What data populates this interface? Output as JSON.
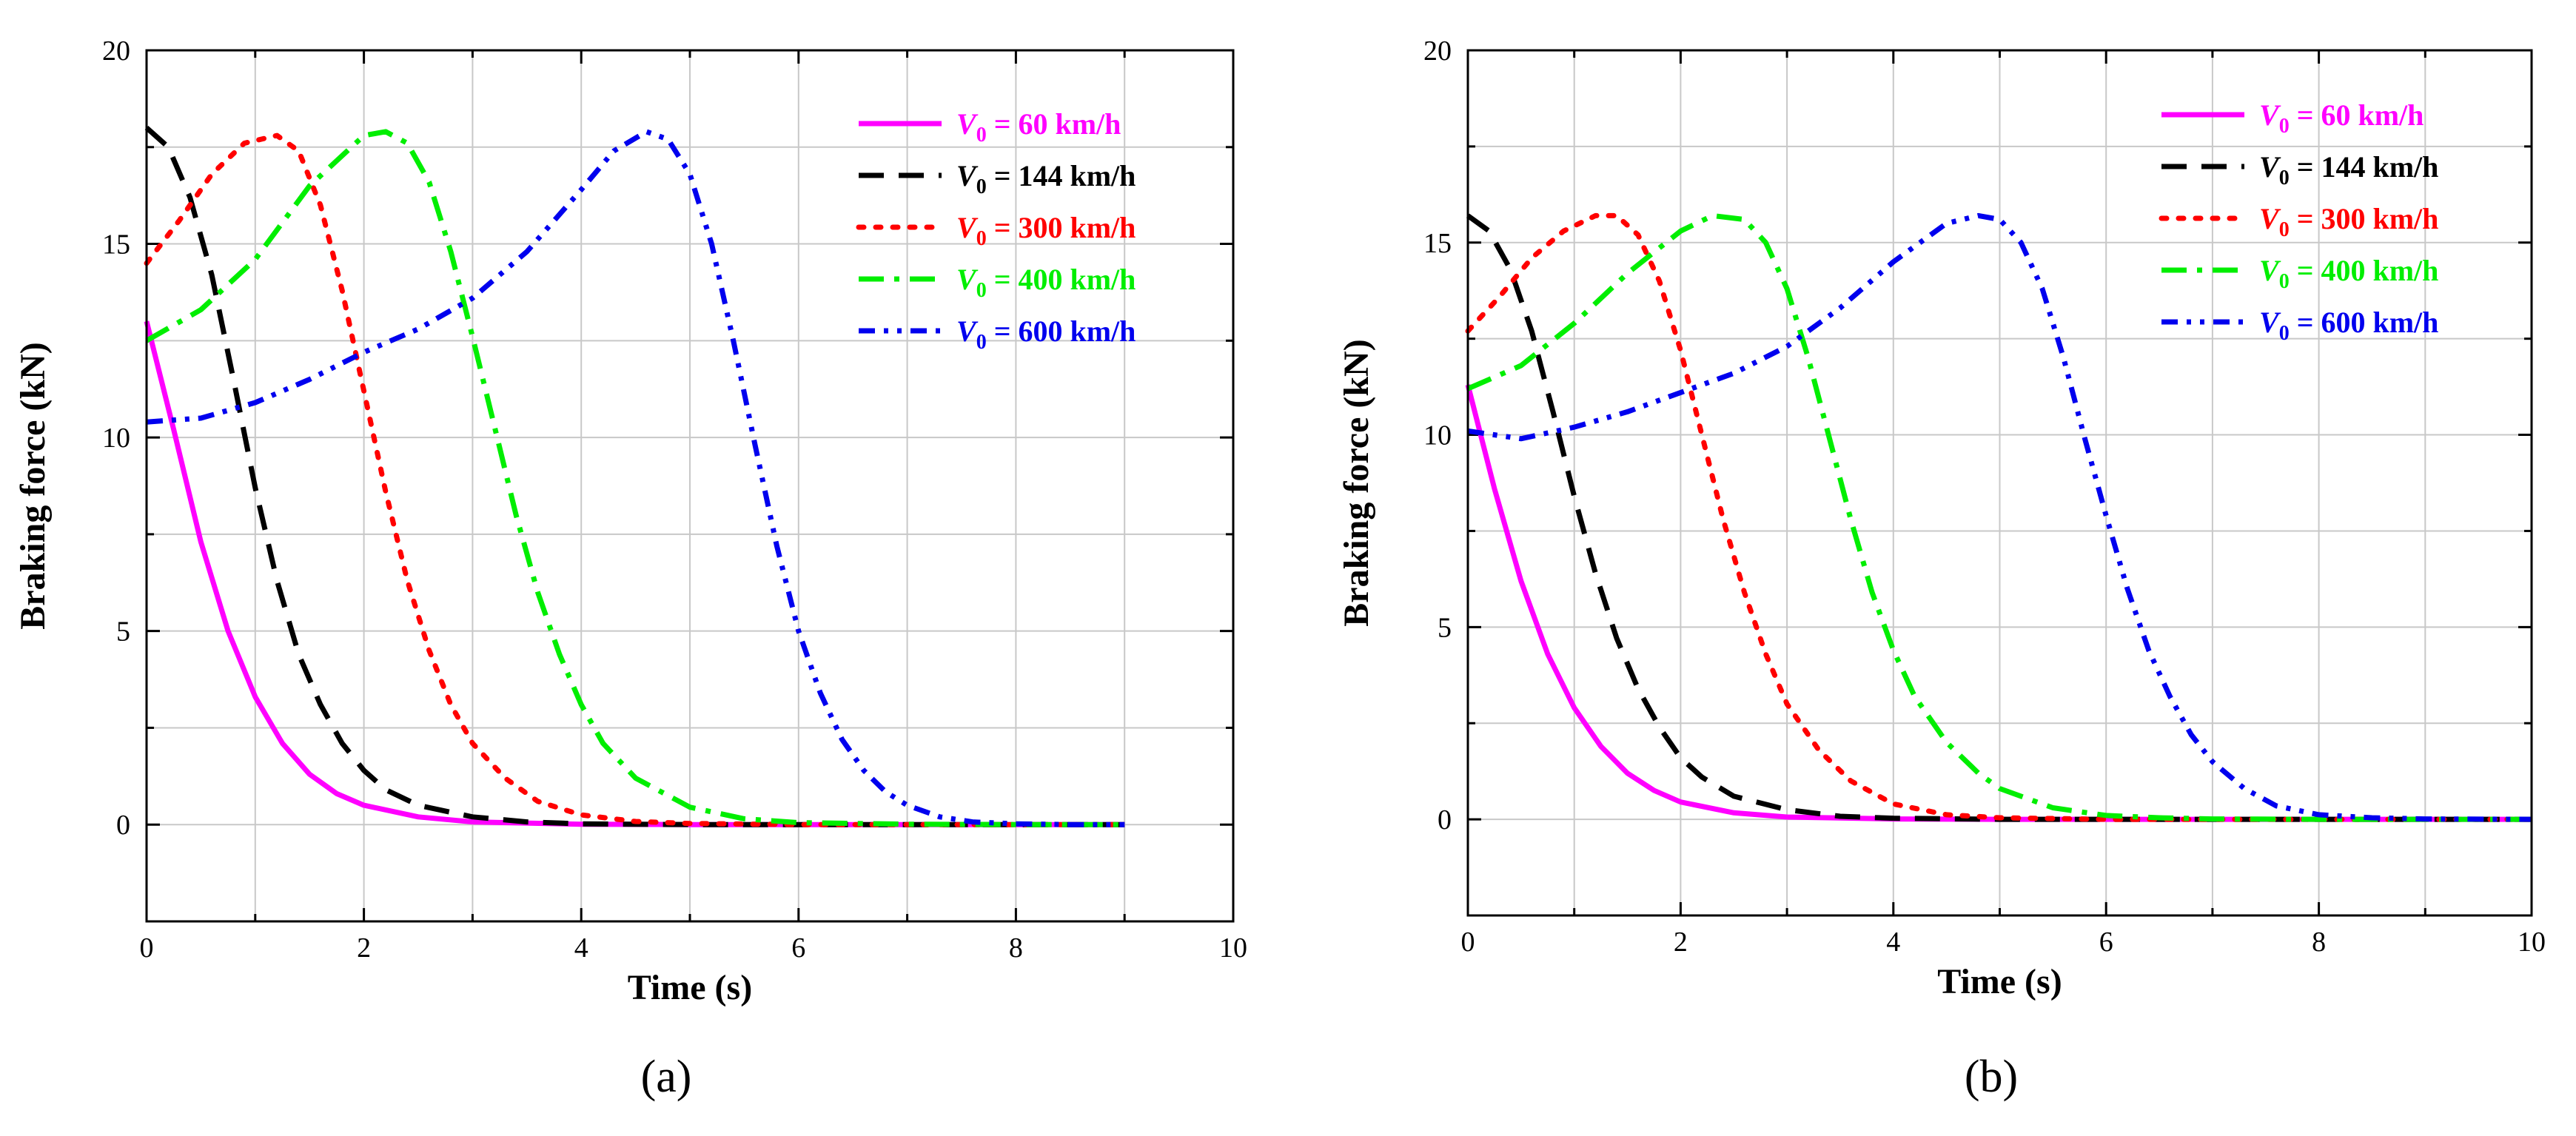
{
  "panels": [
    {
      "panel_label": "(a)",
      "chart_data": {
        "type": "line",
        "title": "",
        "xlabel": "Time (s)",
        "ylabel": "Braking force (kN)",
        "xlim": [
          0,
          10
        ],
        "ylim": [
          -2.5,
          20
        ],
        "xticks": [
          "0",
          "2",
          "4",
          "6",
          "8",
          "10"
        ],
        "yticks": [
          "0",
          "5",
          "10",
          "15",
          "20"
        ],
        "grid": true,
        "legend_position": "top-right",
        "series": [
          {
            "name": "V0 = 60 km/h",
            "label_var": "V",
            "label_sub": "0",
            "label_rest": " = 60 km/h",
            "color": "#ff00ff",
            "style": "solid",
            "x": [
              0,
              0.25,
              0.5,
              0.75,
              1.0,
              1.25,
              1.5,
              1.75,
              2.0,
              2.5,
              3.0,
              4.0,
              5.0,
              6.0,
              7.0,
              8.0,
              9.0
            ],
            "y": [
              13.0,
              10.2,
              7.3,
              5.0,
              3.3,
              2.1,
              1.3,
              0.8,
              0.5,
              0.2,
              0.07,
              0.01,
              0,
              0,
              0,
              0,
              0
            ]
          },
          {
            "name": "V0 = 144 km/h",
            "label_var": "V",
            "label_sub": "0",
            "label_rest": " = 144 km/h",
            "color": "#000000",
            "style": "dash",
            "x": [
              0,
              0.2,
              0.4,
              0.6,
              0.8,
              1.0,
              1.2,
              1.4,
              1.6,
              1.8,
              2.0,
              2.2,
              2.5,
              3.0,
              3.5,
              4.0,
              5.0,
              6.0,
              7.0,
              8.0,
              9.0
            ],
            "y": [
              18.0,
              17.5,
              16.2,
              14.2,
              11.5,
              8.7,
              6.3,
              4.4,
              3.1,
              2.1,
              1.4,
              0.9,
              0.5,
              0.2,
              0.07,
              0.02,
              0,
              0,
              0,
              0,
              0
            ]
          },
          {
            "name": "V0 = 300 km/h",
            "label_var": "V",
            "label_sub": "0",
            "label_rest": " = 300 km/h",
            "color": "#ff0000",
            "style": "dot",
            "x": [
              0,
              0.3,
              0.6,
              0.9,
              1.2,
              1.4,
              1.6,
              1.8,
              2.0,
              2.2,
              2.4,
              2.6,
              2.8,
              3.0,
              3.3,
              3.6,
              4.0,
              4.5,
              5.0,
              6.0,
              7.0,
              8.0,
              9.0
            ],
            "y": [
              14.5,
              15.6,
              16.8,
              17.6,
              17.8,
              17.4,
              16.0,
              13.8,
              11.2,
              8.6,
              6.3,
              4.5,
              3.1,
              2.1,
              1.2,
              0.6,
              0.25,
              0.08,
              0.03,
              0,
              0,
              0,
              0
            ]
          },
          {
            "name": "V0 = 400 km/h",
            "label_var": "V",
            "label_sub": "0",
            "label_rest": " = 400 km/h",
            "color": "#00ee00",
            "style": "dashdot",
            "x": [
              0,
              0.5,
              1.0,
              1.5,
              2.0,
              2.2,
              2.4,
              2.6,
              2.8,
              3.0,
              3.2,
              3.4,
              3.6,
              3.8,
              4.0,
              4.2,
              4.5,
              5.0,
              5.5,
              6.0,
              7.0,
              8.0,
              9.0
            ],
            "y": [
              12.5,
              13.3,
              14.6,
              16.5,
              17.8,
              17.9,
              17.6,
              16.6,
              14.8,
              12.6,
              10.3,
              8.0,
              6.0,
              4.4,
              3.1,
              2.1,
              1.2,
              0.45,
              0.15,
              0.05,
              0.01,
              0,
              0
            ]
          },
          {
            "name": "V0 = 600 km/h",
            "label_var": "V",
            "label_sub": "0",
            "label_rest": " = 600 km/h",
            "color": "#0000ee",
            "style": "dashdotdot",
            "x": [
              0,
              0.5,
              1.0,
              1.5,
              2.0,
              2.5,
              3.0,
              3.5,
              4.0,
              4.3,
              4.6,
              4.8,
              5.0,
              5.2,
              5.4,
              5.6,
              5.8,
              6.0,
              6.2,
              6.4,
              6.6,
              6.8,
              7.0,
              7.3,
              7.6,
              8.0,
              8.5,
              9.0
            ],
            "y": [
              10.4,
              10.5,
              10.9,
              11.5,
              12.2,
              12.8,
              13.6,
              14.8,
              16.4,
              17.4,
              17.9,
              17.7,
              16.8,
              15.0,
              12.5,
              9.8,
              7.2,
              5.0,
              3.4,
              2.2,
              1.4,
              0.85,
              0.5,
              0.2,
              0.07,
              0.02,
              0,
              0
            ]
          }
        ]
      }
    },
    {
      "panel_label": "(b)",
      "chart_data": {
        "type": "line",
        "title": "",
        "xlabel": "Time (s)",
        "ylabel": "Braking force (kN)",
        "xlim": [
          0,
          10
        ],
        "ylim": [
          -2.5,
          20
        ],
        "xticks": [
          "0",
          "2",
          "4",
          "6",
          "8",
          "10"
        ],
        "yticks": [
          "0",
          "5",
          "10",
          "15",
          "20"
        ],
        "grid": true,
        "legend_position": "top-right",
        "series": [
          {
            "name": "V0 = 60 km/h",
            "label_var": "V",
            "label_sub": "0",
            "label_rest": " = 60 km/h",
            "color": "#ff00ff",
            "style": "solid",
            "x": [
              0,
              0.25,
              0.5,
              0.75,
              1.0,
              1.25,
              1.5,
              1.75,
              2.0,
              2.5,
              3.0,
              4.0,
              5.0,
              6.0,
              7.0,
              8.0,
              9.0,
              10.0
            ],
            "y": [
              11.3,
              8.6,
              6.2,
              4.3,
              2.9,
              1.9,
              1.2,
              0.75,
              0.45,
              0.17,
              0.06,
              0.01,
              0,
              0,
              0,
              0,
              0,
              0
            ]
          },
          {
            "name": "V0 = 144 km/h",
            "label_var": "V",
            "label_sub": "0",
            "label_rest": " = 144 km/h",
            "color": "#000000",
            "style": "dash",
            "x": [
              0,
              0.2,
              0.4,
              0.6,
              0.8,
              1.0,
              1.2,
              1.4,
              1.6,
              1.8,
              2.0,
              2.2,
              2.5,
              3.0,
              3.5,
              4.0,
              5.0,
              6.0,
              7.0,
              8.0,
              9.0,
              10.0
            ],
            "y": [
              15.7,
              15.3,
              14.3,
              12.7,
              10.6,
              8.4,
              6.4,
              4.7,
              3.4,
              2.4,
              1.6,
              1.1,
              0.6,
              0.25,
              0.08,
              0.03,
              0,
              0,
              0,
              0,
              0,
              0
            ]
          },
          {
            "name": "V0 = 300 km/h",
            "label_var": "V",
            "label_sub": "0",
            "label_rest": " = 300 km/h",
            "color": "#ff0000",
            "style": "dot",
            "x": [
              0,
              0.3,
              0.6,
              0.9,
              1.2,
              1.4,
              1.6,
              1.8,
              2.0,
              2.2,
              2.4,
              2.6,
              2.8,
              3.0,
              3.3,
              3.6,
              4.0,
              4.5,
              5.0,
              6.0,
              7.0,
              8.0,
              9.0,
              10.0
            ],
            "y": [
              12.7,
              13.6,
              14.6,
              15.3,
              15.7,
              15.7,
              15.2,
              14.0,
              12.2,
              10.0,
              7.8,
              5.9,
              4.3,
              3.0,
              1.8,
              1.0,
              0.4,
              0.12,
              0.04,
              0,
              0,
              0,
              0,
              0
            ]
          },
          {
            "name": "V0 = 400 km/h",
            "label_var": "V",
            "label_sub": "0",
            "label_rest": " = 400 km/h",
            "color": "#00ee00",
            "style": "dashdot",
            "x": [
              0,
              0.5,
              1.0,
              1.5,
              2.0,
              2.3,
              2.6,
              2.8,
              3.0,
              3.2,
              3.4,
              3.6,
              3.8,
              4.0,
              4.2,
              4.5,
              4.8,
              5.0,
              5.5,
              6.0,
              6.5,
              7.0,
              8.0,
              9.0,
              10.0
            ],
            "y": [
              11.2,
              11.8,
              12.9,
              14.2,
              15.3,
              15.7,
              15.6,
              15.0,
              13.8,
              12.0,
              9.9,
              7.8,
              5.9,
              4.4,
              3.2,
              2.0,
              1.2,
              0.8,
              0.3,
              0.1,
              0.04,
              0.01,
              0,
              0,
              0
            ]
          },
          {
            "name": "V0 = 600 km/h",
            "label_var": "V",
            "label_sub": "0",
            "label_rest": " = 600 km/h",
            "color": "#0000ee",
            "style": "dashdotdot",
            "x": [
              0,
              0.5,
              1.0,
              1.5,
              2.0,
              2.5,
              3.0,
              3.5,
              4.0,
              4.5,
              4.8,
              5.0,
              5.2,
              5.4,
              5.6,
              5.8,
              6.0,
              6.2,
              6.4,
              6.6,
              6.8,
              7.0,
              7.3,
              7.6,
              8.0,
              8.5,
              9.0,
              10.0
            ],
            "y": [
              10.1,
              9.9,
              10.2,
              10.6,
              11.1,
              11.6,
              12.3,
              13.3,
              14.5,
              15.5,
              15.7,
              15.6,
              15.0,
              13.8,
              12.0,
              9.9,
              7.9,
              6.0,
              4.4,
              3.2,
              2.2,
              1.5,
              0.8,
              0.35,
              0.12,
              0.04,
              0.01,
              0
            ]
          }
        ]
      }
    }
  ]
}
